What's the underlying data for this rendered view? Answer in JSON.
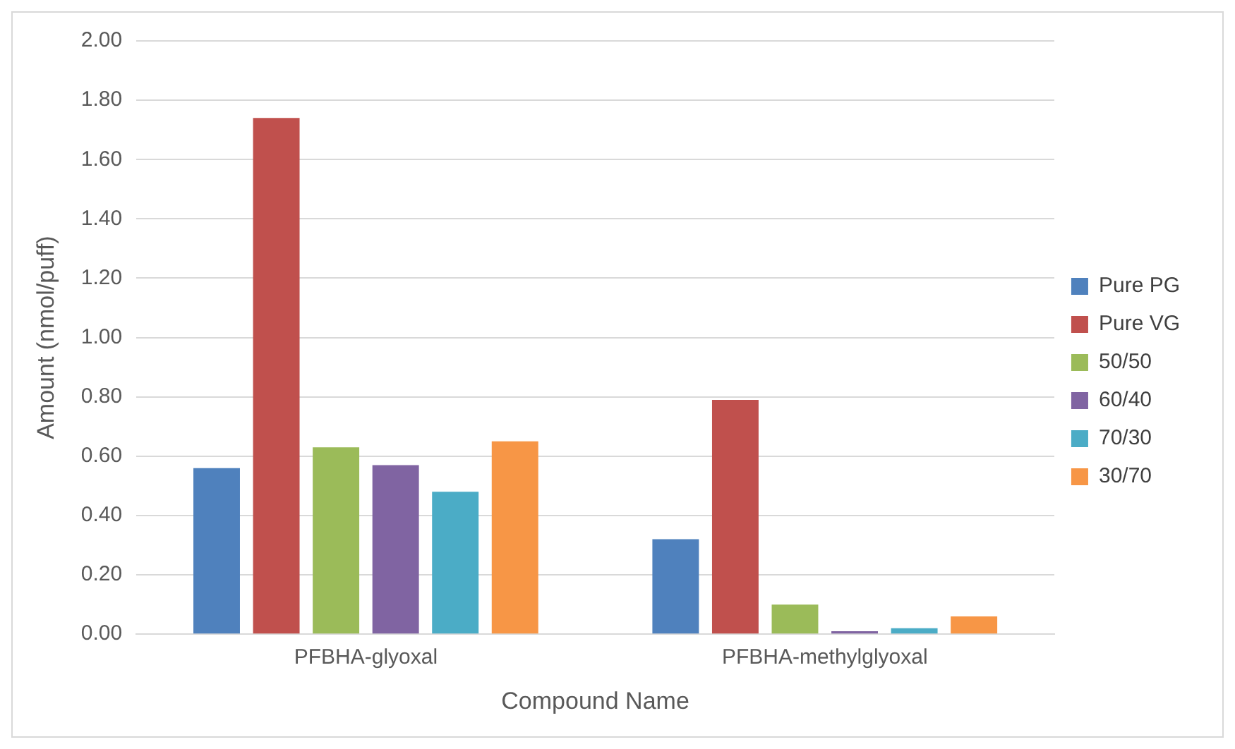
{
  "chart_data": {
    "type": "bar",
    "xlabel": "Compound Name",
    "ylabel": "Amount (nmol/puff)",
    "categories": [
      "PFBHA-glyoxal",
      "PFBHA-methylglyoxal"
    ],
    "series": [
      {
        "name": "Pure PG",
        "color": "#4f81bd",
        "values": [
          0.56,
          0.32
        ]
      },
      {
        "name": "Pure VG",
        "color": "#c0504d",
        "values": [
          1.74,
          0.79
        ]
      },
      {
        "name": "50/50",
        "color": "#9bbb59",
        "values": [
          0.63,
          0.1
        ]
      },
      {
        "name": "60/40",
        "color": "#8064a2",
        "values": [
          0.57,
          0.01
        ]
      },
      {
        "name": "70/30",
        "color": "#4bacc6",
        "values": [
          0.48,
          0.02
        ]
      },
      {
        "name": "30/70",
        "color": "#f79646",
        "values": [
          0.65,
          0.06
        ]
      }
    ],
    "ylim": [
      0,
      2
    ],
    "yticks": [
      {
        "value": 0,
        "label": "0.00"
      },
      {
        "value": 0.2,
        "label": "0.20"
      },
      {
        "value": 0.4,
        "label": "0.40"
      },
      {
        "value": 0.6,
        "label": "0.60"
      },
      {
        "value": 0.8,
        "label": "0.80"
      },
      {
        "value": 1,
        "label": "1.00"
      },
      {
        "value": 1.2,
        "label": "1.20"
      },
      {
        "value": 1.4,
        "label": "1.40"
      },
      {
        "value": 1.6,
        "label": "1.60"
      },
      {
        "value": 1.8,
        "label": "1.80"
      },
      {
        "value": 2,
        "label": "2.00"
      }
    ],
    "grid": "y",
    "legend": "right"
  }
}
